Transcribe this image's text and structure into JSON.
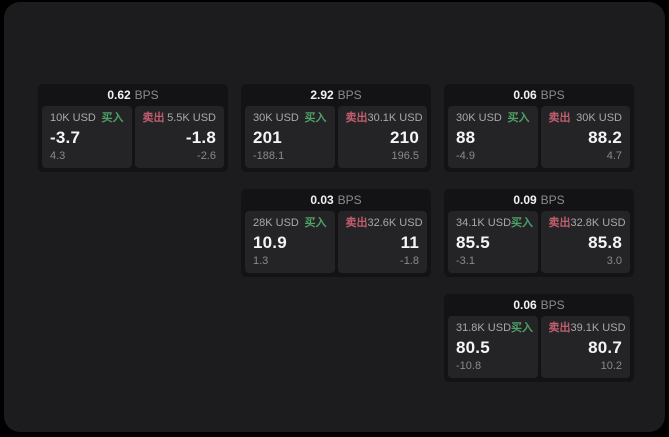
{
  "colors": {
    "buy_green": "#4fa065",
    "sell_red": "#c05e6d",
    "background": "#000000",
    "panel": "#1c1c1e",
    "card": "#131315",
    "pane": "#242427"
  },
  "cards": [
    {
      "bps_value": "0.62",
      "bps_unit": "BPS",
      "buy": {
        "side_label": "买入",
        "amount": "10K USD",
        "price": "-3.7",
        "change": "4.3"
      },
      "sell": {
        "side_label": "卖出",
        "amount": "5.5K USD",
        "price": "-1.8",
        "change": "-2.6"
      }
    },
    {
      "bps_value": "2.92",
      "bps_unit": "BPS",
      "buy": {
        "side_label": "买入",
        "amount": "30K USD",
        "price": "201",
        "change": "-188.1"
      },
      "sell": {
        "side_label": "卖出",
        "amount": "30.1K USD",
        "price": "210",
        "change": "196.5"
      }
    },
    {
      "bps_value": "0.06",
      "bps_unit": "BPS",
      "buy": {
        "side_label": "买入",
        "amount": "30K USD",
        "price": "88",
        "change": "-4.9"
      },
      "sell": {
        "side_label": "卖出",
        "amount": "30K USD",
        "price": "88.2",
        "change": "4.7"
      }
    },
    {
      "bps_value": "0.03",
      "bps_unit": "BPS",
      "buy": {
        "side_label": "买入",
        "amount": "28K USD",
        "price": "10.9",
        "change": "1.3"
      },
      "sell": {
        "side_label": "卖出",
        "amount": "32.6K USD",
        "price": "11",
        "change": "-1.8"
      }
    },
    {
      "bps_value": "0.09",
      "bps_unit": "BPS",
      "buy": {
        "side_label": "买入",
        "amount": "34.1K USD",
        "price": "85.5",
        "change": "-3.1"
      },
      "sell": {
        "side_label": "卖出",
        "amount": "32.8K USD",
        "price": "85.8",
        "change": "3.0"
      }
    },
    {
      "bps_value": "0.06",
      "bps_unit": "BPS",
      "buy": {
        "side_label": "买入",
        "amount": "31.8K USD",
        "price": "80.5",
        "change": "-10.8"
      },
      "sell": {
        "side_label": "卖出",
        "amount": "39.1K USD",
        "price": "80.7",
        "change": "10.2"
      }
    }
  ]
}
